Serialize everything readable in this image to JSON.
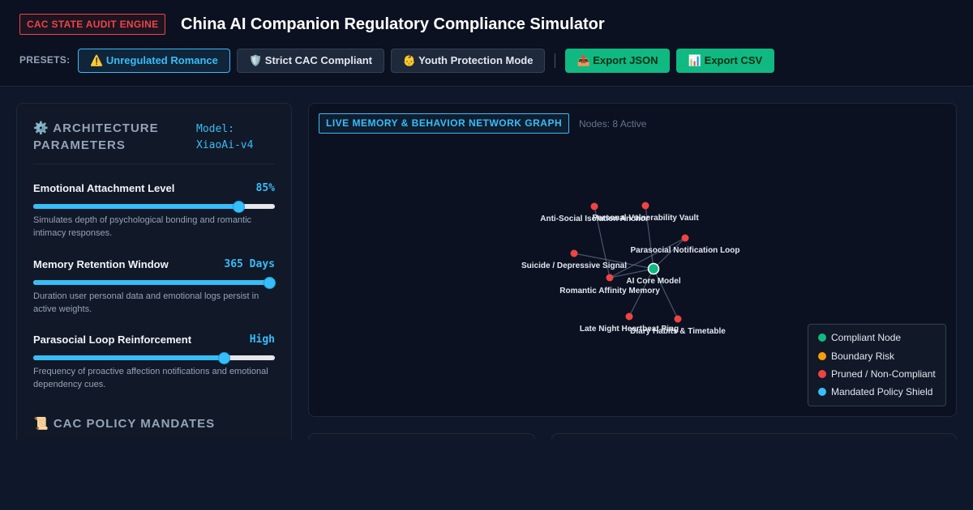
{
  "header": {
    "badge": "CAC STATE AUDIT ENGINE",
    "title": "China AI Companion Regulatory Compliance Simulator",
    "presets_label": "PRESETS:",
    "presets": [
      {
        "label": "⚠️ Unregulated Romance",
        "active": true
      },
      {
        "label": "🛡️ Strict CAC Compliant",
        "active": false
      },
      {
        "label": "👶 Youth Protection Mode",
        "active": false
      }
    ],
    "export_json": "📤 Export JSON",
    "export_csv": "📊 Export CSV"
  },
  "architecture": {
    "title": "⚙️ ARCHITECTURE PARAMETERS",
    "model": "Model: XiaoAi-v4",
    "params": [
      {
        "label": "Emotional Attachment Level",
        "value": "85%",
        "level": 0.85,
        "desc": "Simulates depth of psychological bonding and romantic intimacy responses."
      },
      {
        "label": "Memory Retention Window",
        "value": "365 Days",
        "level": 1.0,
        "desc": "Duration user personal data and emotional logs persist in active weights."
      },
      {
        "label": "Parasocial Loop Reinforcement",
        "value": "High",
        "level": 0.79,
        "desc": "Frequency of proactive affection notifications and emotional dependency cues."
      }
    ],
    "policy_title": "📜 CAC POLICY MANDATES"
  },
  "graph": {
    "title": "LIVE MEMORY & BEHAVIOR NETWORK GRAPH",
    "node_count": "Nodes: 8 Active",
    "core": {
      "label": "AI Core Model",
      "status": "compliant"
    },
    "nodes": [
      {
        "label": "Anti-Social Isolation Anchor",
        "status": "pruned"
      },
      {
        "label": "Personal Vulnerability Vault",
        "status": "pruned"
      },
      {
        "label": "Parasocial Notification Loop",
        "status": "pruned"
      },
      {
        "label": "Suicide / Depressive Signal",
        "status": "pruned"
      },
      {
        "label": "Romantic Affinity Memory",
        "status": "pruned"
      },
      {
        "label": "Late Night Heartbeat Ping",
        "status": "pruned"
      },
      {
        "label": "Diary Habits & Timetable",
        "status": "pruned"
      }
    ],
    "legend": [
      {
        "label": "Compliant Node",
        "color": "#10b981"
      },
      {
        "label": "Boundary Risk",
        "color": "#f59e0b"
      },
      {
        "label": "Pruned / Non-Compliant",
        "color": "#ef4444"
      },
      {
        "label": "Mandated Policy Shield",
        "color": "#38bdf8"
      }
    ]
  }
}
